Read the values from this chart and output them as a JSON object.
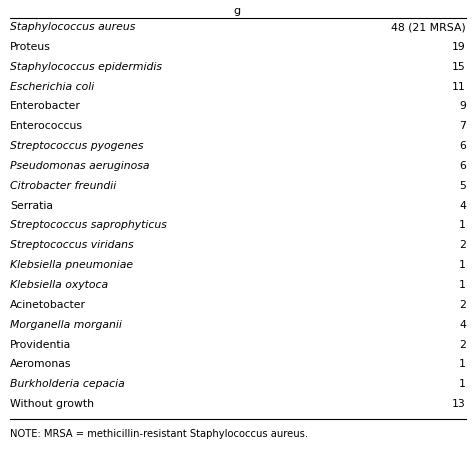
{
  "title_top": "g",
  "rows": [
    {
      "organism": "Staphylococcus aureus",
      "value": "48 (21 MRSA)",
      "italic": true
    },
    {
      "organism": "Proteus",
      "value": "19",
      "italic": false
    },
    {
      "organism": "Staphylococcus epidermidis",
      "value": "15",
      "italic": true
    },
    {
      "organism": "Escherichia coli",
      "value": "11",
      "italic": true
    },
    {
      "organism": "Enterobacter",
      "value": "9",
      "italic": false
    },
    {
      "organism": "Enterococcus",
      "value": "7",
      "italic": false
    },
    {
      "organism": "Streptococcus pyogenes",
      "value": "6",
      "italic": true
    },
    {
      "organism": "Pseudomonas aeruginosa",
      "value": "6",
      "italic": true
    },
    {
      "organism": "Citrobacter freundii",
      "value": "5",
      "italic": true
    },
    {
      "organism": "Serratia",
      "value": "4",
      "italic": false
    },
    {
      "organism": "Streptococcus saprophyticus",
      "value": "1",
      "italic": true
    },
    {
      "organism": "Streptococcus viridans",
      "value": "2",
      "italic": true
    },
    {
      "organism": "Klebsiella pneumoniae",
      "value": "1",
      "italic": true
    },
    {
      "organism": "Klebsiella oxytoca",
      "value": "1",
      "italic": true
    },
    {
      "organism": "Acinetobacter",
      "value": "2",
      "italic": false
    },
    {
      "organism": "Morganella morganii",
      "value": "4",
      "italic": true
    },
    {
      "organism": "Providentia",
      "value": "2",
      "italic": false
    },
    {
      "organism": "Aeromonas",
      "value": "1",
      "italic": false
    },
    {
      "organism": "Burkholderia cepacia",
      "value": "1",
      "italic": true
    },
    {
      "organism": "Without growth",
      "value": "13",
      "italic": false
    }
  ],
  "note": "NOTE: MRSA = methicillin-resistant Staphylococcus aureus.",
  "bg_color": "#ffffff",
  "text_color": "#000000",
  "font_size": 7.8,
  "note_font_size": 7.2,
  "title_fontsize": 8.0,
  "fig_width": 4.74,
  "fig_height": 4.57,
  "dpi": 100
}
